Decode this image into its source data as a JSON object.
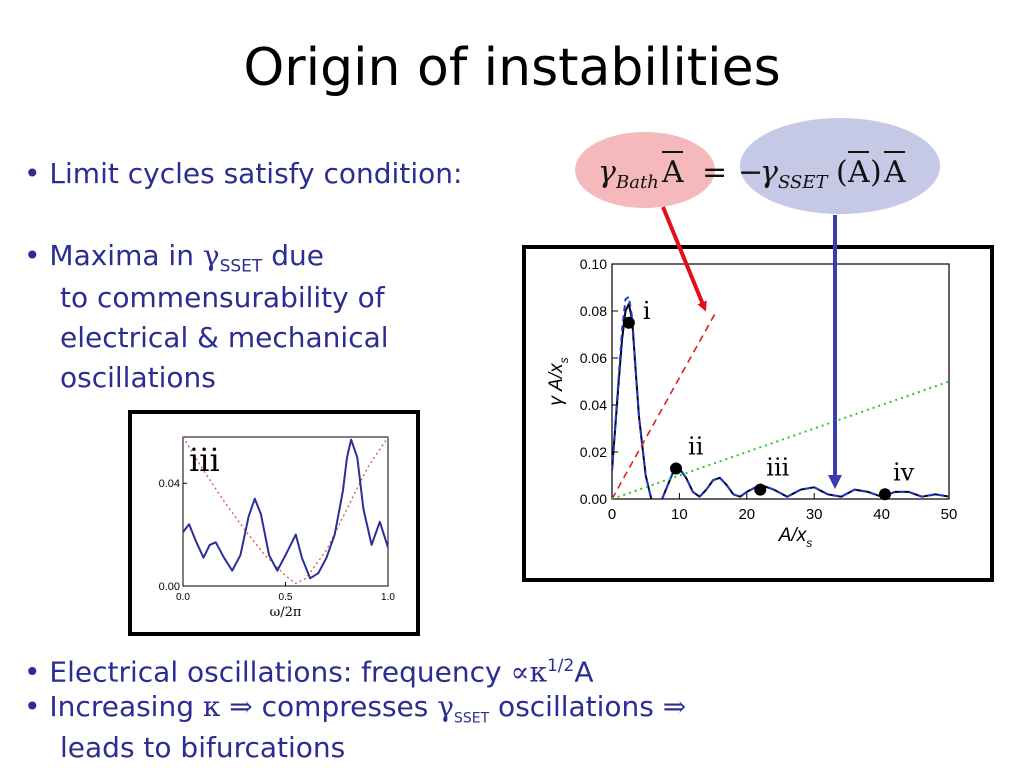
{
  "title": "Origin of instabilities",
  "bullets": {
    "b1": "• Limit cycles satisfy condition:",
    "b2_pre": "• Maxima in ",
    "b2_gamma": "γ",
    "b2_sub": "SSET",
    "b2_post": " due",
    "b2_l2": "to commensurability of",
    "b2_l3": "electrical & mechanical",
    "b2_l4": "oscillations",
    "b3_pre": "• Electrical oscillations: frequency ",
    "b3_prop": "∝",
    "b3_kappa": "κ",
    "b3_sup": "1/2",
    "b3_post": "A",
    "b4_pre": "• Increasing ",
    "b4_kappa": "κ",
    "b4_arrow1": " ⇒ ",
    "b4_mid": "compresses ",
    "b4_gamma": "γ",
    "b4_sub": "SSET",
    "b4_post": " oscillations ",
    "b4_arrow2": "⇒",
    "b4_l2": "leads to bifurcations"
  },
  "equation": {
    "lhs_gamma": "γ",
    "lhs_sub": "Bath",
    "lhs_A": "A",
    "equals": "=",
    "rhs_minus": "−",
    "rhs_gamma": "γ",
    "rhs_sub": "SSET",
    "rhs_paren_open": "(",
    "rhs_A1": "A",
    "rhs_paren_close": ")",
    "rhs_A2": "A",
    "lhs_bubble_color": "#f5b9bc",
    "rhs_bubble_color": "#c5c9e6",
    "red_arrow_color": "#e0101a",
    "blue_arrow_color": "#3a3cb0"
  },
  "chart_data": [
    {
      "type": "line",
      "xlabel": "A/x_s",
      "ylabel": "γ A/x_s",
      "xlim": [
        0,
        50
      ],
      "ylim": [
        0,
        0.1
      ],
      "x_ticks": [
        "0",
        "10",
        "20",
        "30",
        "40",
        "50"
      ],
      "y_ticks": [
        "0.00",
        "0.02",
        "0.04",
        "0.06",
        "0.08",
        "0.10"
      ],
      "series": [
        {
          "style": "solid-black",
          "x": [
            0,
            1,
            1.5,
            2,
            2.5,
            3,
            3.5,
            4,
            5,
            6,
            7,
            8,
            9,
            10,
            11,
            12,
            13,
            14,
            15,
            16,
            17,
            18,
            19,
            20,
            22,
            24,
            26,
            28,
            30,
            32,
            34,
            36,
            38,
            40,
            42,
            44,
            46,
            48,
            50
          ],
          "y": [
            0.012,
            0.05,
            0.068,
            0.08,
            0.083,
            0.076,
            0.055,
            0.035,
            0.01,
            -0.002,
            -0.003,
            0.004,
            0.011,
            0.013,
            0.009,
            0.003,
            0.001,
            0.004,
            0.008,
            0.009,
            0.006,
            0.002,
            0.001,
            0.003,
            0.006,
            0.004,
            0.001,
            0.004,
            0.005,
            0.002,
            0.001,
            0.004,
            0.003,
            0.001,
            0.003,
            0.003,
            0.001,
            0.002,
            0.001
          ]
        },
        {
          "style": "dashed-blue",
          "x": [
            0,
            1,
            1.5,
            2,
            2.5,
            3,
            3.5,
            4,
            5,
            6,
            7,
            8,
            9,
            10,
            11,
            12,
            13,
            14,
            15,
            16,
            17,
            18,
            19,
            20,
            22,
            24,
            26,
            28,
            30,
            32,
            34,
            36,
            38,
            40,
            42,
            44,
            46,
            48,
            50
          ],
          "y": [
            0.012,
            0.052,
            0.072,
            0.085,
            0.086,
            0.077,
            0.056,
            0.035,
            0.01,
            -0.002,
            -0.003,
            0.004,
            0.011,
            0.013,
            0.009,
            0.003,
            0.001,
            0.004,
            0.008,
            0.009,
            0.006,
            0.002,
            0.001,
            0.003,
            0.006,
            0.004,
            0.001,
            0.004,
            0.005,
            0.002,
            0.001,
            0.004,
            0.003,
            0.001,
            0.003,
            0.003,
            0.001,
            0.002,
            0.001
          ]
        },
        {
          "style": "dashed-red",
          "x": [
            0,
            15.5
          ],
          "y": [
            0,
            0.08
          ]
        },
        {
          "style": "dotted-green",
          "x": [
            0,
            50
          ],
          "y": [
            0,
            0.05
          ]
        }
      ],
      "points": [
        {
          "label": "i",
          "x": 2.5,
          "y": 0.075
        },
        {
          "label": "ii",
          "x": 9.5,
          "y": 0.013
        },
        {
          "label": "iii",
          "x": 22,
          "y": 0.004
        },
        {
          "label": "iv",
          "x": 40.5,
          "y": 0.002
        }
      ]
    },
    {
      "type": "line",
      "xlabel": "ω/2π",
      "xlim": [
        0,
        1
      ],
      "ylim": [
        0,
        0.058
      ],
      "x_ticks": [
        "0.0",
        "0.5",
        "1.0"
      ],
      "y_ticks": [
        "0.00",
        "0.04"
      ],
      "annotation": "iii",
      "series": [
        {
          "style": "solid-blue",
          "x": [
            0,
            0.03,
            0.06,
            0.1,
            0.13,
            0.16,
            0.2,
            0.24,
            0.28,
            0.32,
            0.35,
            0.38,
            0.42,
            0.46,
            0.5,
            0.55,
            0.58,
            0.62,
            0.66,
            0.7,
            0.74,
            0.78,
            0.8,
            0.82,
            0.85,
            0.88,
            0.92,
            0.96,
            1.0
          ],
          "y": [
            0.021,
            0.024,
            0.018,
            0.011,
            0.016,
            0.017,
            0.011,
            0.006,
            0.012,
            0.027,
            0.034,
            0.028,
            0.012,
            0.006,
            0.012,
            0.02,
            0.011,
            0.003,
            0.005,
            0.011,
            0.02,
            0.037,
            0.05,
            0.057,
            0.05,
            0.03,
            0.016,
            0.025,
            0.015
          ]
        },
        {
          "style": "dotted-red",
          "x": [
            0,
            0.1,
            0.2,
            0.3,
            0.4,
            0.5,
            0.55,
            0.6,
            0.7,
            0.8,
            0.9,
            1.0
          ],
          "y": [
            0.058,
            0.045,
            0.033,
            0.022,
            0.012,
            0.004,
            0.001,
            0.003,
            0.014,
            0.03,
            0.046,
            0.058
          ]
        }
      ]
    }
  ]
}
